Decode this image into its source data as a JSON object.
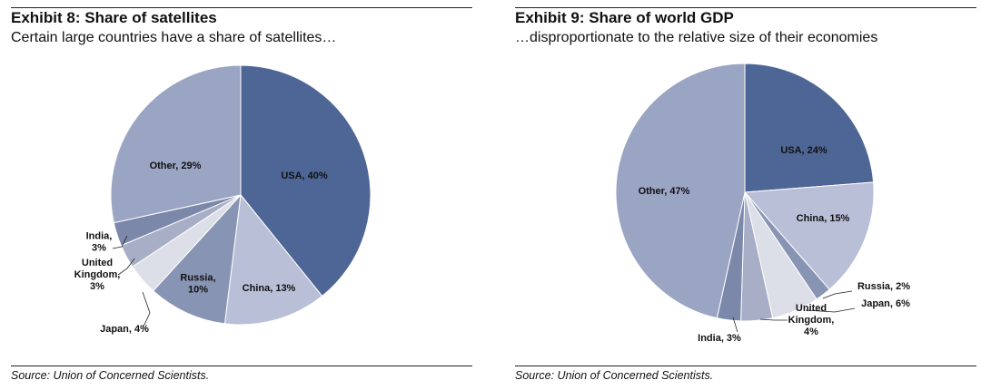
{
  "chart_data": [
    {
      "type": "pie",
      "title": "Exhibit 8: Share of satellites",
      "subtitle": "Certain large countries have a share of satellites…",
      "source": "Source: Union of Concerned Scientists.",
      "slices": [
        {
          "name": "USA",
          "value": 40,
          "color": "#4e6696",
          "label_lines": [
            "USA, 40%"
          ]
        },
        {
          "name": "China",
          "value": 13,
          "color": "#b9bfd6",
          "label_lines": [
            "China, 13%"
          ]
        },
        {
          "name": "Russia",
          "value": 10,
          "color": "#8794b3",
          "label_lines": [
            "Russia,",
            "10%"
          ]
        },
        {
          "name": "Japan",
          "value": 4,
          "color": "#dcdfe8",
          "label_lines": [
            "Japan, 4%"
          ]
        },
        {
          "name": "United Kingdom",
          "value": 3,
          "color": "#a7aec6",
          "label_lines": [
            "United",
            "Kingdom,",
            "3%"
          ]
        },
        {
          "name": "India",
          "value": 3,
          "color": "#7b88aa",
          "label_lines": [
            "India,",
            "3%"
          ]
        },
        {
          "name": "Other",
          "value": 29,
          "color": "#9aa4c3",
          "label_lines": [
            "Other, 29%"
          ]
        }
      ]
    },
    {
      "type": "pie",
      "title": "Exhibit 9: Share of world GDP",
      "subtitle": "…disproportionate to the relative size of their economies",
      "source": "Source: Union of Concerned Scientists.",
      "slices": [
        {
          "name": "USA",
          "value": 24,
          "color": "#4e6696",
          "label_lines": [
            "USA, 24%"
          ]
        },
        {
          "name": "China",
          "value": 15,
          "color": "#b9bfd6",
          "label_lines": [
            "China, 15%"
          ]
        },
        {
          "name": "Russia",
          "value": 2,
          "color": "#8794b3",
          "label_lines": [
            "Russia, 2%"
          ]
        },
        {
          "name": "Japan",
          "value": 6,
          "color": "#dcdfe8",
          "label_lines": [
            "Japan, 6%"
          ]
        },
        {
          "name": "United Kingdom",
          "value": 4,
          "color": "#a7aec6",
          "label_lines": [
            "United",
            "Kingdom,",
            "4%"
          ]
        },
        {
          "name": "India",
          "value": 3,
          "color": "#7b88aa",
          "label_lines": [
            "India, 3%"
          ]
        },
        {
          "name": "Other",
          "value": 47,
          "color": "#9aa4c3",
          "label_lines": [
            "Other, 47%"
          ]
        }
      ]
    }
  ]
}
